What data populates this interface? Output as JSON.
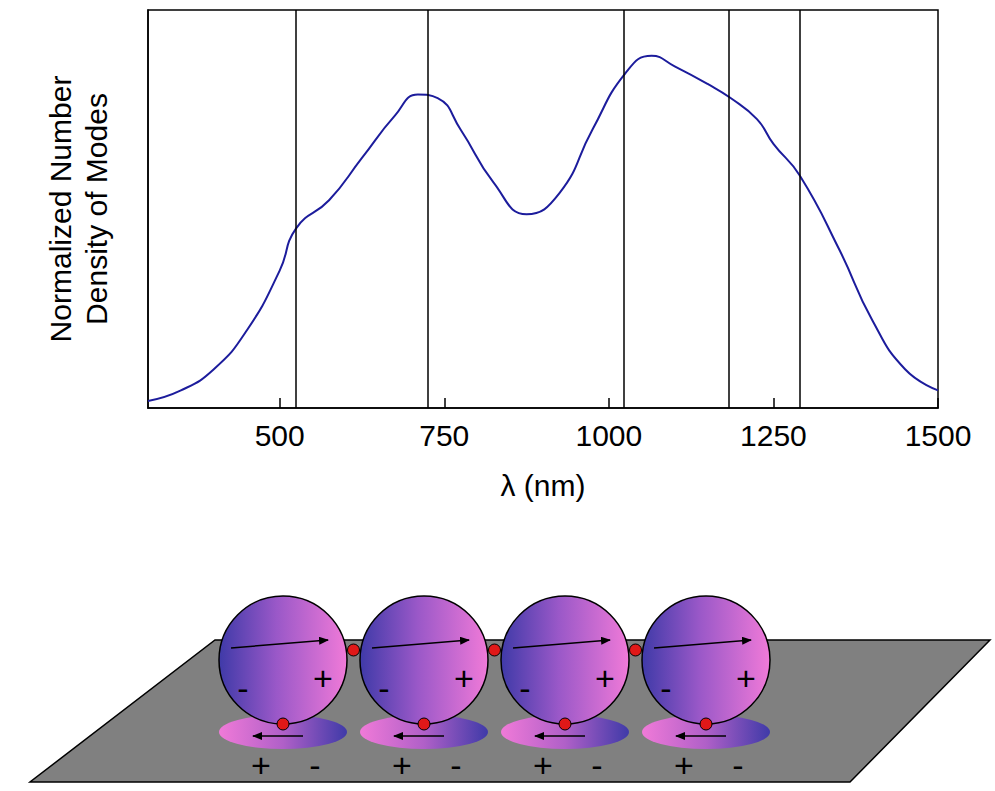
{
  "chart_data": {
    "type": "line",
    "y_label": "Normalized Number\nDensity of Modes",
    "x_label": "λ (nm)",
    "x": [
      300,
      350,
      400,
      450,
      500,
      525,
      575,
      625,
      675,
      710,
      740,
      775,
      825,
      875,
      925,
      975,
      1025,
      1065,
      1100,
      1150,
      1185,
      1225,
      1250,
      1290,
      1350,
      1400,
      1450,
      1500
    ],
    "values": [
      0.02,
      0.05,
      0.11,
      0.22,
      0.39,
      0.51,
      0.59,
      0.71,
      0.83,
      0.89,
      0.88,
      0.79,
      0.64,
      0.55,
      0.61,
      0.79,
      0.95,
      1.0,
      0.97,
      0.92,
      0.88,
      0.82,
      0.75,
      0.66,
      0.45,
      0.25,
      0.11,
      0.05
    ],
    "color": "#1c1c9c",
    "vertical_lines": [
      525,
      725,
      1022,
      1182,
      1290
    ],
    "xlim": [
      300,
      1500
    ],
    "xticks": [
      500,
      750,
      1000,
      1250,
      1500
    ],
    "ylim": [
      0,
      1.13
    ],
    "tick_labels": "x",
    "grid": false
  },
  "diagram": {
    "particles": 4,
    "particle_charge_labels": [
      "-",
      "+"
    ],
    "image_charge_labels": [
      "+",
      "-"
    ]
  }
}
